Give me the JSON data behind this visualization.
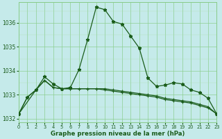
{
  "line1_x": [
    0,
    1,
    2,
    3,
    4,
    5,
    6,
    7,
    8,
    9,
    10,
    11,
    12,
    13,
    14,
    15,
    16,
    17,
    18,
    19,
    20,
    21,
    22,
    23
  ],
  "line1_y": [
    1032.2,
    1032.9,
    1033.2,
    1033.75,
    1033.45,
    1033.25,
    1033.3,
    1034.05,
    1035.3,
    1036.65,
    1036.55,
    1036.05,
    1035.95,
    1035.45,
    1034.95,
    1033.7,
    1033.35,
    1033.4,
    1033.5,
    1033.45,
    1033.2,
    1033.1,
    1032.85,
    1032.2
  ],
  "line2_x": [
    0,
    1,
    2,
    3,
    4,
    5,
    6,
    7,
    8,
    9,
    10,
    11,
    12,
    13,
    14,
    15,
    16,
    17,
    18,
    19,
    20,
    21,
    22,
    23
  ],
  "line2_y": [
    1032.2,
    1032.9,
    1033.2,
    1033.6,
    1033.3,
    1033.25,
    1033.25,
    1033.25,
    1033.25,
    1033.25,
    1033.25,
    1033.2,
    1033.15,
    1033.1,
    1033.05,
    1033.0,
    1032.95,
    1032.85,
    1032.8,
    1032.75,
    1032.7,
    1032.6,
    1032.5,
    1032.2
  ],
  "line3_x": [
    0,
    2,
    3,
    4,
    5,
    6,
    7,
    8,
    9,
    10,
    11,
    12,
    13,
    14,
    15,
    16,
    17,
    18,
    19,
    20,
    21,
    22,
    23
  ],
  "line3_y": [
    1032.2,
    1033.2,
    1033.6,
    1033.3,
    1033.25,
    1033.25,
    1033.25,
    1033.25,
    1033.25,
    1033.2,
    1033.15,
    1033.1,
    1033.05,
    1033.0,
    1032.95,
    1032.9,
    1032.8,
    1032.75,
    1032.7,
    1032.65,
    1032.55,
    1032.45,
    1032.2
  ],
  "bg_color": "#c5eaea",
  "line_color": "#1a5c1a",
  "grid_color_major": "#88cc88",
  "grid_color_minor": "#aaddaa",
  "xlabel": "Graphe pression niveau de la mer (hPa)",
  "ylim": [
    1031.85,
    1036.85
  ],
  "xlim": [
    0,
    23
  ],
  "yticks": [
    1032,
    1033,
    1034,
    1035,
    1036
  ],
  "xticks": [
    0,
    1,
    2,
    3,
    4,
    5,
    6,
    7,
    8,
    9,
    10,
    11,
    12,
    13,
    14,
    15,
    16,
    17,
    18,
    19,
    20,
    21,
    22,
    23
  ]
}
